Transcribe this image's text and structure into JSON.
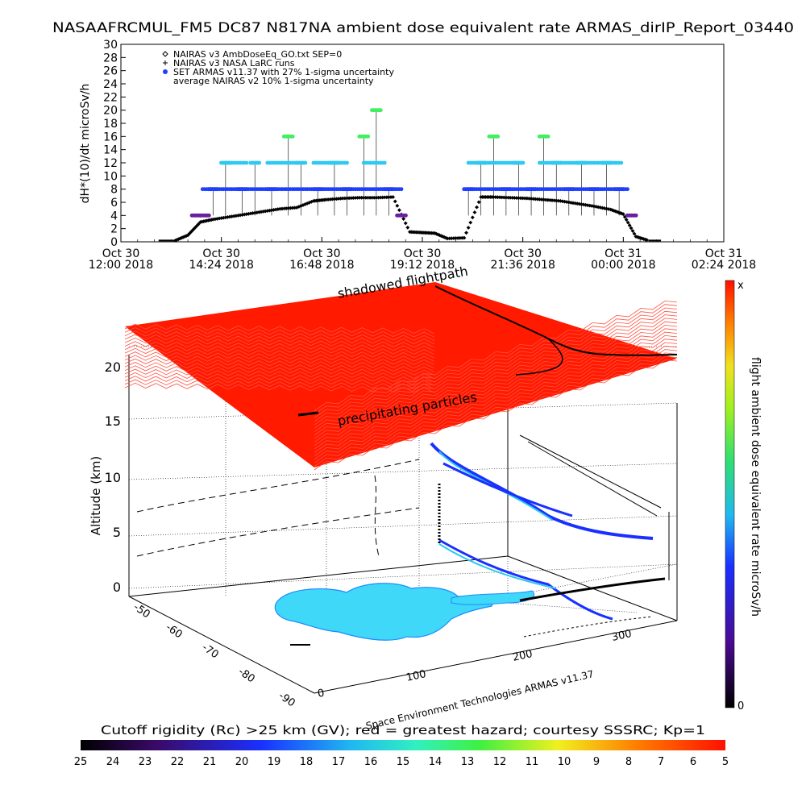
{
  "title": "NASAAFRCMUL_FM5 DC87 N817NA ambient dose equivalent rate ARMAS_dirIP_Report_03440",
  "timeseries": {
    "ylabel": "dH*(10)/dt microSv/h",
    "yticks": [
      0,
      2,
      4,
      6,
      8,
      10,
      12,
      14,
      16,
      18,
      20,
      22,
      24,
      26,
      28,
      30
    ],
    "ylim": [
      0,
      30
    ],
    "xticks": [
      {
        "line1": "Oct 30",
        "line2": "12:00 2018"
      },
      {
        "line1": "Oct 30",
        "line2": "14:24 2018"
      },
      {
        "line1": "Oct 30",
        "line2": "16:48 2018"
      },
      {
        "line1": "Oct 30",
        "line2": "19:12 2018"
      },
      {
        "line1": "Oct 30",
        "line2": "21:36 2018"
      },
      {
        "line1": "Oct 31",
        "line2": "00:00 2018"
      },
      {
        "line1": "Oct 31",
        "line2": "02:24 2018"
      }
    ],
    "legend": [
      {
        "symbol": "diamond",
        "text": "NAIRAS v3 AmbDoseEq_GO.txt SEP=0"
      },
      {
        "symbol": "plus",
        "text": "NAIRAS v3 NASA LaRC runs"
      },
      {
        "symbol": "bluedot",
        "text": "SET ARMAS v11.37 with 27% 1-sigma uncertainty"
      },
      {
        "symbol": "none",
        "text": "average NAIRAS v2 10% 1-sigma uncertainty"
      }
    ]
  },
  "chart_data": [
    {
      "type": "scatter",
      "title": "NASAAFRCMUL_FM5 DC87 N817NA ambient dose equivalent rate ARMAS_dirIP_Report_03440",
      "ylabel": "dH*(10)/dt microSv/h",
      "xlabel": "",
      "ylim": [
        0,
        30
      ],
      "xlim_hours_from_oct30_12_00": [
        0,
        14.4
      ],
      "series": [
        {
          "name": "NAIRAS v3 AmbDoseEq_GO.txt SEP=0",
          "x": [
            1.3,
            1.6,
            1.9,
            2.2,
            2.6,
            3.0,
            3.4,
            3.8,
            4.2,
            4.6,
            4.9,
            5.3,
            5.7,
            6.1,
            6.5,
            6.9,
            7.2,
            7.5,
            7.8,
            8.2,
            8.6,
            8.9,
            9.3,
            9.7,
            10.1,
            10.5,
            10.9,
            11.3,
            11.7,
            12.0,
            12.3,
            12.6
          ],
          "y": [
            0.2,
            1,
            3,
            3.4,
            3.8,
            4.2,
            4.6,
            5,
            5.2,
            6.2,
            6.4,
            6.6,
            6.7,
            6.7,
            6.8,
            1.5,
            1.4,
            1.3,
            0.5,
            0.6,
            6.8,
            6.8,
            6.7,
            6.6,
            6.4,
            6.2,
            5.8,
            5.4,
            4.9,
            4.2,
            0.8,
            0.2
          ]
        },
        {
          "name": "SET ARMAS v11.37 with 27% 1-sigma uncertainty",
          "x": [
            1.8,
            2.0,
            2.2,
            2.5,
            2.9,
            3.2,
            3.6,
            4.0,
            4.3,
            4.7,
            5.1,
            5.4,
            5.8,
            6.1,
            6.4,
            6.7,
            8.3,
            8.6,
            8.9,
            9.2,
            9.5,
            9.8,
            10.1,
            10.4,
            10.7,
            11.0,
            11.3,
            11.6,
            11.9,
            12.2
          ],
          "y": [
            4,
            4,
            8,
            12,
            8,
            12,
            8,
            16,
            12,
            8,
            12,
            8,
            16,
            20,
            8,
            4,
            8,
            12,
            16,
            8,
            12,
            8,
            16,
            12,
            8,
            12,
            8,
            12,
            8,
            4
          ]
        }
      ]
    },
    {
      "type": "heatmap",
      "title": "",
      "zlabel": "Altitude (km)",
      "zticks": [
        0,
        5,
        10,
        15,
        20
      ],
      "lat_ticks": [
        -50,
        -60,
        -70,
        -80,
        -90
      ],
      "lon_ticks": [
        0,
        100,
        200,
        300
      ],
      "colorbar_label": "flight ambient dose equivalent rate microSv/h",
      "colorbar_top": "x",
      "colorbar_bottom": "0"
    }
  ],
  "plot3d": {
    "zlabel": "Altitude (km)",
    "zticks": [
      "0",
      "5",
      "10",
      "15",
      "20"
    ],
    "lat_ticks": [
      "-50",
      "-60",
      "-70",
      "-80",
      "-90"
    ],
    "lon_ticks": [
      "0",
      "100",
      "200",
      "300"
    ],
    "annotation_shadowed": "shadowed flightpath",
    "annotation_precip": "precipitating particles",
    "credit": "Space Environment Technologies ARMAS v11.37",
    "colorbar_label": "flight ambient dose equivalent rate microSv/h",
    "colorbar_top": "x",
    "colorbar_bottom": "0",
    "bottom_caption": "Cutoff rigidity (Rc) >25 km (GV); red = greatest hazard; courtesy SSSRC; Kp=1",
    "rc_ticks": [
      "25",
      "24",
      "23",
      "22",
      "21",
      "20",
      "19",
      "18",
      "17",
      "16",
      "15",
      "14",
      "13",
      "12",
      "11",
      "10",
      "9",
      "8",
      "7",
      "6",
      "5"
    ]
  },
  "colors": {
    "armas_blue": "#1f3fff",
    "armas_cyan": "#2ec8f0",
    "armas_green": "#40f060",
    "armas_purple": "#6a1fa0",
    "layer_red": "#ff1a00",
    "landmass": "#40d8f8"
  }
}
